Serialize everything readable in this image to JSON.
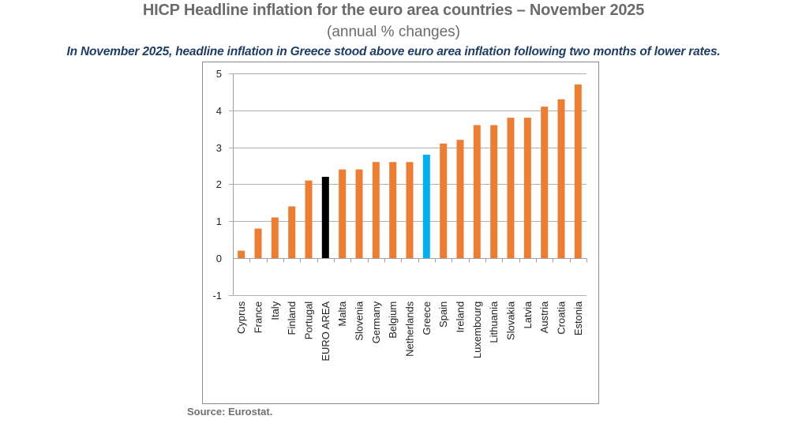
{
  "header": {
    "title": "HICP Headline inflation for the euro area countries – November 2025",
    "subtitle": "(annual % changes)",
    "headline": "In November 2025, headline inflation in Greece stood above euro area inflation following two months of lower rates."
  },
  "footer": {
    "source": "Source: Eurostat."
  },
  "colors": {
    "default_bar": "#ed7d31",
    "euro_area_bar": "#000000",
    "greece_bar": "#00b0f0",
    "gridline": "#b0b0b0",
    "axis": "#a0a0a0",
    "frame": "#8c8c8c"
  },
  "chart_data": {
    "type": "bar",
    "title": "HICP Headline inflation for the euro area countries – November 2025",
    "subtitle": "(annual % changes)",
    "xlabel": "",
    "ylabel": "",
    "ylim": [
      -1,
      5
    ],
    "yticks": [
      -1,
      0,
      1,
      2,
      3,
      4,
      5
    ],
    "grid": true,
    "legend": "none",
    "categories": [
      "Cyprus",
      "France",
      "Italy",
      "Finland",
      "Portugal",
      "EURO AREA",
      "Malta",
      "Slovenia",
      "Germany",
      "Belgium",
      "Netherlands",
      "Greece",
      "Spain",
      "Ireland",
      "Luxembourg",
      "Lithuania",
      "Slovakia",
      "Latvia",
      "Austria",
      "Croatia",
      "Estonia"
    ],
    "values": [
      0.2,
      0.8,
      1.1,
      1.4,
      2.1,
      2.2,
      2.4,
      2.4,
      2.6,
      2.6,
      2.6,
      2.8,
      3.1,
      3.2,
      3.6,
      3.6,
      3.8,
      3.8,
      4.1,
      4.3,
      4.7
    ],
    "highlights": {
      "EURO AREA": "euro_area_bar",
      "Greece": "greece_bar"
    }
  }
}
